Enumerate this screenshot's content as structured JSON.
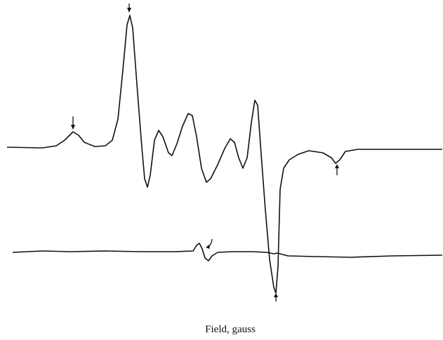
{
  "chart_data": {
    "type": "line",
    "xlabel": "Field, gauss",
    "xlim": [
      0,
      631
    ],
    "ylim": [
      -275,
      210
    ],
    "series": [
      {
        "color": "#111111",
        "x": [
          10,
          60,
          80,
          92,
          104,
          112,
          120,
          135,
          150,
          160,
          168,
          175,
          181,
          185,
          189,
          195,
          202,
          206,
          210,
          214,
          220,
          226,
          232,
          240,
          245,
          252,
          260,
          268,
          274,
          280,
          287,
          294,
          300,
          310,
          320,
          328,
          334,
          340,
          346,
          352,
          358,
          363,
          367,
          372,
          378,
          384,
          390,
          393,
          396,
          399,
          404,
          412,
          425,
          440,
          460,
          472,
          478,
          484,
          492,
          510,
          560,
          630
        ],
        "values": [
          0,
          -1,
          2,
          10,
          22,
          17,
          7,
          1,
          2,
          10,
          40,
          110,
          175,
          188,
          170,
          90,
          0,
          -45,
          -57,
          -40,
          10,
          24,
          15,
          -8,
          -12,
          5,
          30,
          48,
          45,
          15,
          -30,
          -50,
          -45,
          -25,
          -2,
          12,
          7,
          -15,
          -30,
          -15,
          35,
          67,
          60,
          -10,
          -90,
          -160,
          -200,
          -208,
          -170,
          -60,
          -30,
          -18,
          -10,
          -5,
          -8,
          -15,
          -23,
          -18,
          -6,
          -3,
          -3,
          -3
        ]
      },
      {
        "color": "#111111",
        "x": [
          18,
          60,
          100,
          150,
          200,
          250,
          275,
          280,
          284,
          288,
          292,
          297,
          302,
          310,
          330,
          360,
          380,
          390,
          395,
          410,
          450,
          500,
          560,
          630
        ],
        "values": [
          -150,
          -148,
          -149,
          -148,
          -149,
          -149,
          -148,
          -140,
          -137,
          -145,
          -158,
          -162,
          -155,
          -150,
          -149,
          -149,
          -150,
          -152,
          -151,
          -155,
          -156,
          -157,
          -155,
          -154
        ]
      }
    ]
  }
}
